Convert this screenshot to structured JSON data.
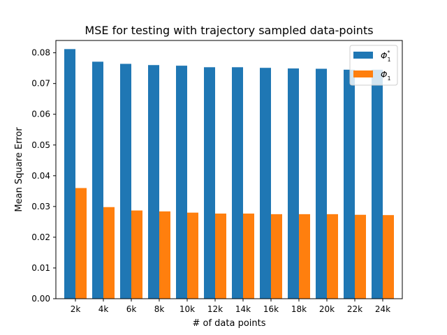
{
  "chart_data": {
    "type": "bar",
    "title": "MSE for testing with trajectory sampled data-points",
    "xlabel": "# of data points",
    "ylabel": "Mean Square Error",
    "categories": [
      "2k",
      "4k",
      "6k",
      "8k",
      "10k",
      "12k",
      "14k",
      "16k",
      "18k",
      "20k",
      "22k",
      "24k"
    ],
    "ylim": [
      0,
      0.084
    ],
    "yticks": [
      "0.00",
      "0.01",
      "0.02",
      "0.03",
      "0.04",
      "0.05",
      "0.06",
      "0.07",
      "0.08"
    ],
    "grid": false,
    "legend_position": "top-right",
    "series": [
      {
        "name": "Φ₁*",
        "color": "#1f77b4",
        "values": [
          0.0812,
          0.0771,
          0.0764,
          0.076,
          0.0758,
          0.0753,
          0.0753,
          0.0751,
          0.0749,
          0.0748,
          0.0745,
          0.0745
        ]
      },
      {
        "name": "Φ₁",
        "color": "#ff7f0e",
        "values": [
          0.036,
          0.0298,
          0.0287,
          0.0284,
          0.028,
          0.0277,
          0.0277,
          0.0275,
          0.0275,
          0.0275,
          0.0273,
          0.0272
        ]
      }
    ]
  }
}
